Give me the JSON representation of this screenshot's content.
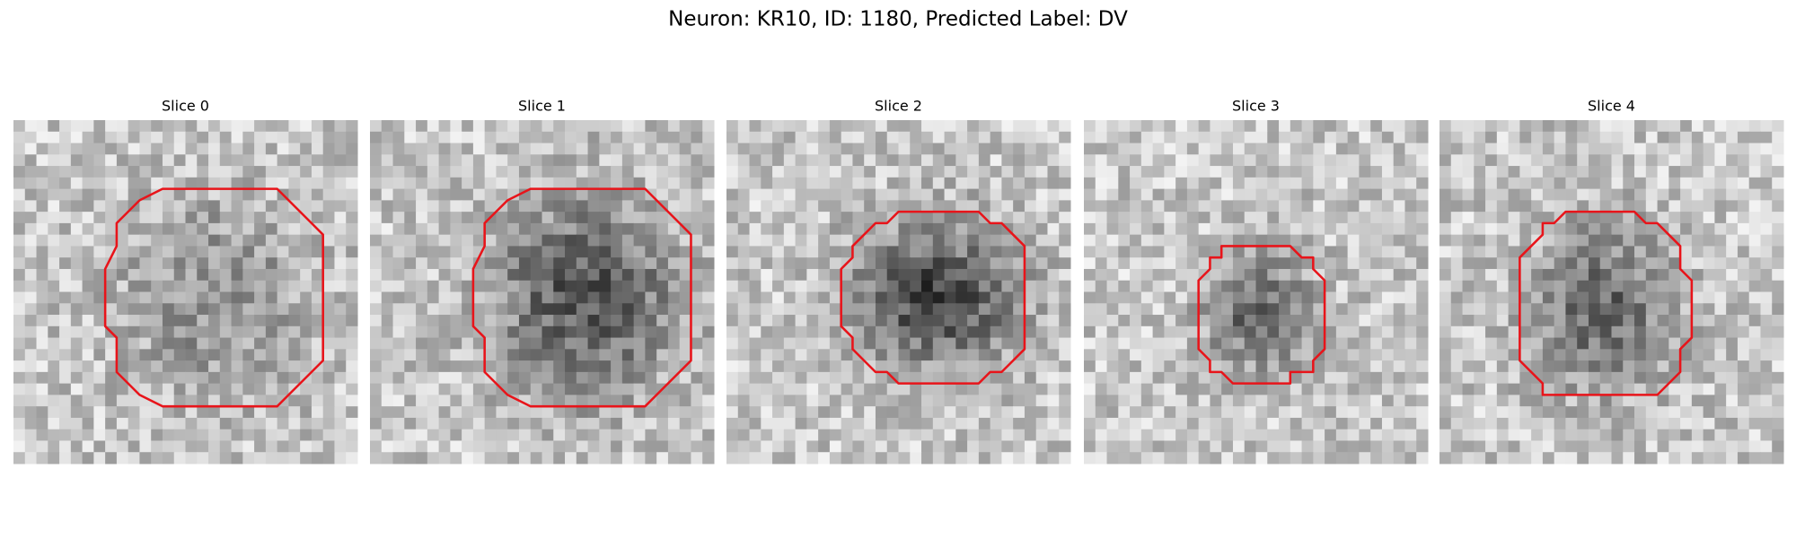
{
  "title": "Neuron: KR10, ID: 1180, Predicted Label: DV",
  "panels": [
    {
      "label": "Slice 0"
    },
    {
      "label": "Slice 1"
    },
    {
      "label": "Slice 2"
    },
    {
      "label": "Slice 3"
    },
    {
      "label": "Slice 4"
    }
  ]
}
